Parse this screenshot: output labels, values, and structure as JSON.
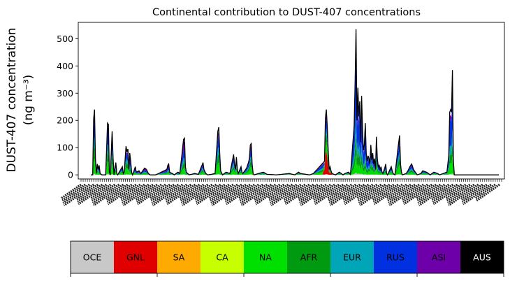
{
  "chart_data": {
    "type": "area",
    "title": "Continental contribution to DUST-407 concentrations",
    "ylabel_line1": "DUST-407 concentration",
    "ylabel_line2": "(ng m⁻³)",
    "xlabel": "",
    "ylim": [
      -15,
      560
    ],
    "yticks": [
      0,
      100,
      200,
      300,
      400,
      500
    ],
    "x_ticks": {
      "count": 200,
      "labels_legible": false
    },
    "grid": false,
    "legend": "below",
    "stack_order": [
      "OCE",
      "GNL",
      "SA",
      "CA",
      "NA",
      "AFR",
      "EUR",
      "RUS",
      "ASI",
      "AUS"
    ],
    "regions": [
      {
        "name": "OCE",
        "color": "#c8c8c8",
        "text_color": "#000000"
      },
      {
        "name": "GNL",
        "color": "#e00000",
        "text_color": "#000000"
      },
      {
        "name": "SA",
        "color": "#ffaa00",
        "text_color": "#000000"
      },
      {
        "name": "CA",
        "color": "#c8ff00",
        "text_color": "#000000"
      },
      {
        "name": "NA",
        "color": "#00e000",
        "text_color": "#000000"
      },
      {
        "name": "AFR",
        "color": "#009a10",
        "text_color": "#000000"
      },
      {
        "name": "EUR",
        "color": "#00a5b8",
        "text_color": "#000000"
      },
      {
        "name": "RUS",
        "color": "#0030e0",
        "text_color": "#000000"
      },
      {
        "name": "ASI",
        "color": "#6e00aa",
        "text_color": "#000000"
      },
      {
        "name": "AUS",
        "color": "#000000",
        "text_color": "#ffffff"
      }
    ],
    "index_range": [
      0,
      440
    ],
    "total_line_color": "#000000",
    "total": [
      [
        0,
        0
      ],
      [
        2,
        0
      ],
      [
        3,
        205
      ],
      [
        4,
        240
      ],
      [
        5,
        60
      ],
      [
        6,
        5
      ],
      [
        7,
        40
      ],
      [
        8,
        20
      ],
      [
        9,
        35
      ],
      [
        10,
        5
      ],
      [
        12,
        0
      ],
      [
        16,
        0
      ],
      [
        18,
        190
      ],
      [
        19,
        185
      ],
      [
        20,
        10
      ],
      [
        21,
        0
      ],
      [
        23,
        160
      ],
      [
        24,
        60
      ],
      [
        25,
        0
      ],
      [
        26,
        25
      ],
      [
        27,
        45
      ],
      [
        28,
        5
      ],
      [
        29,
        0
      ],
      [
        34,
        30
      ],
      [
        35,
        5
      ],
      [
        36,
        10
      ],
      [
        38,
        105
      ],
      [
        39,
        85
      ],
      [
        40,
        95
      ],
      [
        41,
        20
      ],
      [
        42,
        80
      ],
      [
        43,
        50
      ],
      [
        44,
        10
      ],
      [
        45,
        0
      ],
      [
        48,
        30
      ],
      [
        49,
        10
      ],
      [
        52,
        15
      ],
      [
        54,
        5
      ],
      [
        58,
        25
      ],
      [
        60,
        20
      ],
      [
        62,
        5
      ],
      [
        64,
        0
      ],
      [
        70,
        0
      ],
      [
        82,
        20
      ],
      [
        83,
        35
      ],
      [
        84,
        40
      ],
      [
        85,
        10
      ],
      [
        88,
        5
      ],
      [
        90,
        0
      ],
      [
        94,
        10
      ],
      [
        96,
        5
      ],
      [
        100,
        130
      ],
      [
        101,
        135
      ],
      [
        102,
        30
      ],
      [
        103,
        10
      ],
      [
        106,
        0
      ],
      [
        112,
        5
      ],
      [
        116,
        2
      ],
      [
        121,
        45
      ],
      [
        122,
        20
      ],
      [
        124,
        5
      ],
      [
        126,
        0
      ],
      [
        130,
        2
      ],
      [
        134,
        5
      ],
      [
        137,
        160
      ],
      [
        138,
        175
      ],
      [
        139,
        80
      ],
      [
        140,
        15
      ],
      [
        142,
        0
      ],
      [
        146,
        10
      ],
      [
        150,
        5
      ],
      [
        154,
        75
      ],
      [
        155,
        40
      ],
      [
        156,
        20
      ],
      [
        157,
        65
      ],
      [
        158,
        20
      ],
      [
        159,
        5
      ],
      [
        162,
        30
      ],
      [
        163,
        10
      ],
      [
        164,
        5
      ],
      [
        168,
        25
      ],
      [
        170,
        45
      ],
      [
        171,
        60
      ],
      [
        172,
        110
      ],
      [
        173,
        115
      ],
      [
        174,
        40
      ],
      [
        175,
        5
      ],
      [
        176,
        0
      ],
      [
        186,
        10
      ],
      [
        190,
        2
      ],
      [
        200,
        0
      ],
      [
        206,
        2
      ],
      [
        214,
        5
      ],
      [
        220,
        0
      ],
      [
        224,
        10
      ],
      [
        226,
        5
      ],
      [
        232,
        2
      ],
      [
        236,
        0
      ],
      [
        240,
        5
      ],
      [
        252,
        50
      ],
      [
        253,
        210
      ],
      [
        254,
        240
      ],
      [
        255,
        175
      ],
      [
        256,
        90
      ],
      [
        257,
        20
      ],
      [
        258,
        30
      ],
      [
        259,
        15
      ],
      [
        260,
        5
      ],
      [
        264,
        0
      ],
      [
        268,
        10
      ],
      [
        270,
        5
      ],
      [
        272,
        0
      ],
      [
        274,
        5
      ],
      [
        278,
        10
      ],
      [
        280,
        2
      ],
      [
        284,
        180
      ],
      [
        285,
        340
      ],
      [
        286,
        535
      ],
      [
        287,
        200
      ],
      [
        288,
        320
      ],
      [
        289,
        215
      ],
      [
        290,
        270
      ],
      [
        291,
        120
      ],
      [
        292,
        290
      ],
      [
        293,
        170
      ],
      [
        294,
        90
      ],
      [
        295,
        110
      ],
      [
        296,
        190
      ],
      [
        297,
        80
      ],
      [
        298,
        50
      ],
      [
        299,
        70
      ],
      [
        300,
        60
      ],
      [
        301,
        40
      ],
      [
        302,
        110
      ],
      [
        303,
        55
      ],
      [
        304,
        80
      ],
      [
        305,
        40
      ],
      [
        306,
        60
      ],
      [
        307,
        20
      ],
      [
        308,
        140
      ],
      [
        309,
        60
      ],
      [
        310,
        30
      ],
      [
        311,
        35
      ],
      [
        312,
        20
      ],
      [
        313,
        30
      ],
      [
        314,
        10
      ],
      [
        315,
        5
      ],
      [
        317,
        25
      ],
      [
        318,
        40
      ],
      [
        319,
        5
      ],
      [
        320,
        0
      ],
      [
        324,
        30
      ],
      [
        325,
        15
      ],
      [
        326,
        5
      ],
      [
        328,
        0
      ],
      [
        332,
        120
      ],
      [
        333,
        145
      ],
      [
        334,
        40
      ],
      [
        335,
        10
      ],
      [
        336,
        0
      ],
      [
        340,
        5
      ],
      [
        342,
        15
      ],
      [
        344,
        30
      ],
      [
        346,
        40
      ],
      [
        348,
        20
      ],
      [
        350,
        10
      ],
      [
        352,
        0
      ],
      [
        356,
        5
      ],
      [
        358,
        15
      ],
      [
        362,
        10
      ],
      [
        364,
        5
      ],
      [
        366,
        0
      ],
      [
        370,
        10
      ],
      [
        374,
        5
      ],
      [
        376,
        0
      ],
      [
        380,
        5
      ],
      [
        384,
        10
      ],
      [
        386,
        70
      ],
      [
        387,
        230
      ],
      [
        388,
        240
      ],
      [
        389,
        230
      ],
      [
        390,
        385
      ],
      [
        391,
        50
      ],
      [
        392,
        0
      ]
    ]
  }
}
